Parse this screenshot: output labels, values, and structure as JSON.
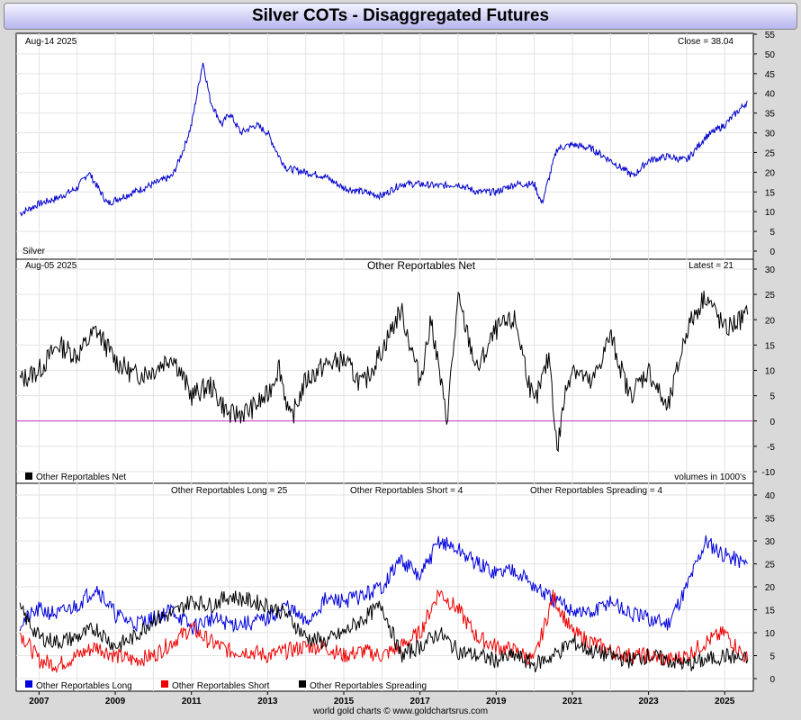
{
  "title": "Silver COTs - Disaggregated Futures",
  "footer": "world gold charts © www.goldchartsrus.com",
  "x_axis_years": [
    "2007",
    "2009",
    "2011",
    "2013",
    "2015",
    "2017",
    "2019",
    "2021",
    "2023",
    "2025"
  ],
  "panels": {
    "price": {
      "date_label": "Aug-14  2025",
      "latest_label": "Close = 38.04",
      "series_label": "Silver",
      "color": "#0000cc"
    },
    "net": {
      "date_label": "Aug-05  2025",
      "heading": "Other Reportables Net",
      "latest_label": "Latest = 21",
      "legend": "Other Reportables Net",
      "units_label": "volumes in 1000's",
      "zero_line_color": "#cc33cc"
    },
    "components": {
      "long_label": "Other Reportables Long = 25",
      "short_label": "Other Reportables Short = 4",
      "spreading_label": "Other Reportables Spreading = 4",
      "legend": [
        "Other Reportables Long",
        "Other Reportables Short",
        "Other Reportables Spreading"
      ],
      "colors": [
        "#0000dd",
        "#ee0000",
        "#000000"
      ]
    }
  },
  "chart_data": [
    {
      "type": "line",
      "title": "Silver",
      "x": [
        2006.5,
        2007,
        2007.5,
        2008,
        2008.3,
        2008.8,
        2009,
        2009.5,
        2010,
        2010.5,
        2010.8,
        2011.0,
        2011.3,
        2011.5,
        2011.8,
        2012,
        2012.3,
        2012.7,
        2013,
        2013.3,
        2013.5,
        2014,
        2014.5,
        2015,
        2015.5,
        2016,
        2016.5,
        2017,
        2017.5,
        2018,
        2018.5,
        2019,
        2019.5,
        2020,
        2020.2,
        2020.6,
        2021,
        2021.5,
        2022,
        2022.6,
        2023,
        2023.5,
        2024,
        2024.5,
        2025,
        2025.6
      ],
      "values": [
        9.5,
        12,
        13.5,
        16,
        20,
        12,
        13,
        15,
        17,
        19,
        26,
        32,
        48,
        38,
        32,
        35,
        30,
        32,
        30,
        24,
        21,
        20,
        19,
        16,
        15,
        14,
        17,
        17,
        16.5,
        17,
        15,
        15,
        17,
        17,
        12,
        26,
        27,
        26,
        23,
        19,
        23,
        24,
        23,
        29,
        32,
        38
      ],
      "ylim": [
        0,
        55
      ]
    },
    {
      "type": "line",
      "title": "Other Reportables Net",
      "x": [
        2006.5,
        2007,
        2007.5,
        2008,
        2008.5,
        2009,
        2009.5,
        2010,
        2010.5,
        2011,
        2011.5,
        2012,
        2012.5,
        2013,
        2013.3,
        2013.6,
        2014,
        2014.5,
        2015,
        2015.5,
        2016,
        2016.5,
        2017,
        2017.3,
        2017.7,
        2018,
        2018.5,
        2019,
        2019.5,
        2020,
        2020.4,
        2020.6,
        2020.8,
        2021,
        2021.5,
        2022,
        2022.5,
        2023,
        2023.5,
        2024,
        2024.5,
        2025,
        2025.6
      ],
      "values": [
        8,
        10,
        15,
        13,
        18,
        12,
        9,
        10,
        13,
        5,
        7,
        1,
        2,
        5,
        11,
        0,
        8,
        11,
        12,
        7,
        14,
        22,
        8,
        20,
        0,
        24,
        10,
        18,
        20,
        3,
        13,
        -6,
        5,
        11,
        7,
        17,
        5,
        10,
        2,
        18,
        25,
        18,
        21
      ],
      "ylim": [
        -10,
        30
      ]
    },
    {
      "type": "line",
      "x": [
        2006.5,
        2007,
        2007.5,
        2008,
        2008.5,
        2009,
        2009.5,
        2010,
        2010.5,
        2011,
        2011.5,
        2012,
        2012.5,
        2013,
        2013.5,
        2014,
        2014.5,
        2015,
        2015.5,
        2016,
        2016.5,
        2017,
        2017.5,
        2018,
        2018.5,
        2019,
        2019.5,
        2020,
        2020.5,
        2021,
        2021.5,
        2022,
        2022.5,
        2023,
        2023.5,
        2024,
        2024.5,
        2025,
        2025.6
      ],
      "series": [
        {
          "name": "Other Reportables Long",
          "values": [
            12,
            15,
            14,
            16,
            20,
            14,
            12,
            13,
            15,
            11,
            13,
            12,
            12,
            13,
            16,
            12,
            17,
            17,
            18,
            20,
            26,
            22,
            30,
            28,
            25,
            23,
            24,
            20,
            17,
            15,
            14,
            17,
            14,
            13,
            12,
            20,
            30,
            27,
            25
          ]
        },
        {
          "name": "Other Reportables Short",
          "values": [
            10,
            4,
            3,
            5,
            7,
            5,
            4,
            5,
            8,
            11,
            8,
            6,
            6,
            5,
            6,
            7,
            7,
            5,
            6,
            5,
            7,
            10,
            19,
            15,
            9,
            7,
            6,
            4,
            18,
            10,
            8,
            6,
            5,
            5,
            4,
            5,
            8,
            10,
            4
          ]
        },
        {
          "name": "Other Reportables Spreading",
          "values": [
            15,
            9,
            8,
            9,
            11,
            7,
            9,
            13,
            14,
            17,
            16,
            18,
            17,
            16,
            14,
            9,
            8,
            10,
            13,
            16,
            5,
            7,
            10,
            6,
            5,
            4,
            5,
            3,
            5,
            8,
            6,
            5,
            4,
            5,
            4,
            3,
            4,
            5,
            4
          ]
        }
      ],
      "ylim": [
        0,
        40
      ]
    }
  ]
}
